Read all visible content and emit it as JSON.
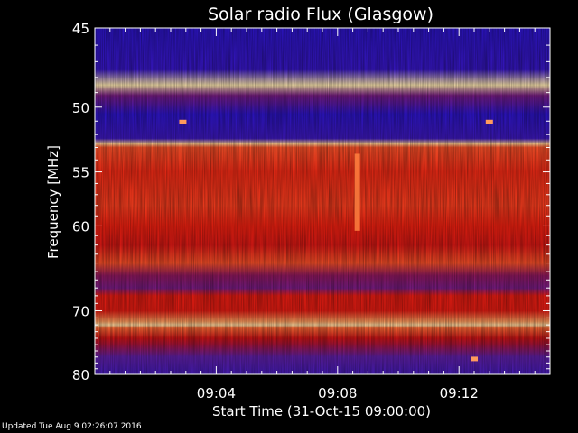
{
  "chart_data": {
    "type": "heatmap",
    "title": "Solar radio Flux (Glasgow)",
    "xlabel": "Start Time (31-Oct-15 09:00:00)",
    "ylabel": "Frequency [MHz]",
    "x_ticks": [
      "09:04",
      "09:08",
      "09:12"
    ],
    "x_tick_minutes": [
      4,
      8,
      12
    ],
    "x_range_minutes": [
      0,
      15
    ],
    "y_ticks": [
      "45",
      "50",
      "55",
      "60",
      "70",
      "80"
    ],
    "y_tick_values": [
      45,
      50,
      55,
      60,
      70,
      80
    ],
    "y_range": [
      45,
      80
    ],
    "y_scale": "reciprocal",
    "colormap": [
      "#1a10d0",
      "#6020a8",
      "#c01018",
      "#f02010",
      "#ff8040",
      "#ffe8b0"
    ],
    "intensity_profile": [
      {
        "freq": 45.0,
        "level": 0.05
      },
      {
        "freq": 47.5,
        "level": 0.08
      },
      {
        "freq": 48.5,
        "level": 1.0
      },
      {
        "freq": 49.2,
        "level": 0.25
      },
      {
        "freq": 50.5,
        "level": 0.05
      },
      {
        "freq": 52.3,
        "level": 0.1
      },
      {
        "freq": 52.7,
        "level": 0.95
      },
      {
        "freq": 53.0,
        "level": 0.7
      },
      {
        "freq": 55.0,
        "level": 0.62
      },
      {
        "freq": 58.0,
        "level": 0.66
      },
      {
        "freq": 60.0,
        "level": 0.6
      },
      {
        "freq": 62.0,
        "level": 0.5
      },
      {
        "freq": 64.0,
        "level": 0.7
      },
      {
        "freq": 65.5,
        "level": 0.3
      },
      {
        "freq": 67.0,
        "level": 0.25
      },
      {
        "freq": 68.0,
        "level": 0.55
      },
      {
        "freq": 70.0,
        "level": 0.55
      },
      {
        "freq": 71.5,
        "level": 0.85
      },
      {
        "freq": 72.0,
        "level": 0.97
      },
      {
        "freq": 72.5,
        "level": 0.75
      },
      {
        "freq": 74.0,
        "level": 0.45
      },
      {
        "freq": 75.0,
        "level": 0.35
      },
      {
        "freq": 77.0,
        "level": 0.2
      },
      {
        "freq": 80.0,
        "level": 0.12
      }
    ],
    "features": [
      {
        "kind": "vertical_burst",
        "time_minutes": 8.65,
        "freq_range": [
          53.5,
          60.5
        ]
      },
      {
        "kind": "spot",
        "time_minutes": 12.5,
        "freq": 77.4
      },
      {
        "kind": "spot",
        "time_minutes": 2.9,
        "freq": 51.1
      },
      {
        "kind": "spot",
        "time_minutes": 13.0,
        "freq": 51.1
      }
    ]
  },
  "footer": {
    "updated": "Updated Tue Aug  9 02:26:07 2016"
  }
}
